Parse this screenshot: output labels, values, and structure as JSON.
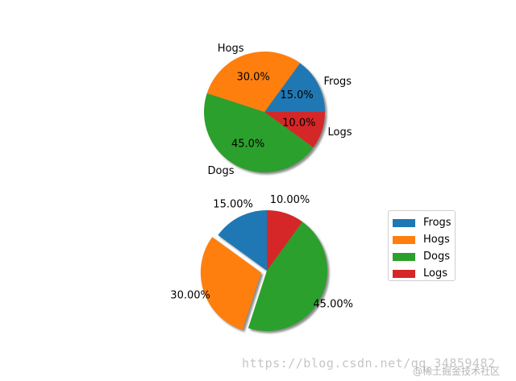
{
  "chart_data": [
    {
      "type": "pie",
      "categories": [
        "Frogs",
        "Hogs",
        "Dogs",
        "Logs"
      ],
      "values": [
        15,
        30,
        45,
        10
      ],
      "colors": [
        "#1f77b4",
        "#ff7f0e",
        "#2ca02c",
        "#d62728"
      ],
      "slice_labels": [
        "Frogs",
        "Hogs",
        "Dogs",
        "Logs"
      ],
      "pct_labels": [
        "15.0%",
        "30.0%",
        "45.0%",
        "10.0%"
      ],
      "start_angle_deg": 0,
      "shadow": true,
      "explode": [
        0,
        0,
        0,
        0
      ]
    },
    {
      "type": "pie",
      "categories": [
        "Frogs",
        "Hogs",
        "Dogs",
        "Logs"
      ],
      "values": [
        15,
        30,
        45,
        10
      ],
      "colors": [
        "#1f77b4",
        "#ff7f0e",
        "#2ca02c",
        "#d62728"
      ],
      "pct_labels": [
        "15.00%",
        "30.00%",
        "45.00%",
        "10.00%"
      ],
      "start_angle_deg": 90,
      "shadow": true,
      "explode": [
        0,
        0.1,
        0,
        0
      ],
      "legend": {
        "placement": "right",
        "entries": [
          "Frogs",
          "Hogs",
          "Dogs",
          "Logs"
        ]
      }
    }
  ],
  "watermark": "https://blog.csdn.net/qq_34859482",
  "watermark_credit": "@稀土掘金技术社区"
}
